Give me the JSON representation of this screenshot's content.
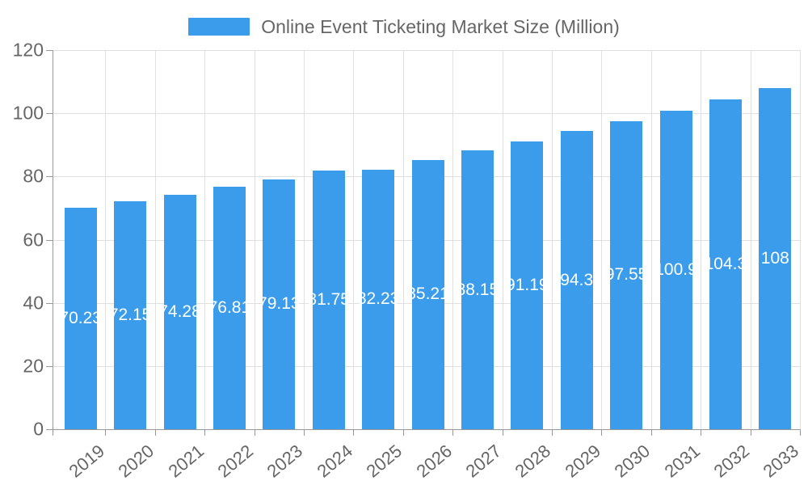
{
  "legend": {
    "label": "Online Event Ticketing Market Size (Million)"
  },
  "chart_data": {
    "type": "bar",
    "title": "Online Event Ticketing Market Size (Million)",
    "categories": [
      "2019",
      "2020",
      "2021",
      "2022",
      "2023",
      "2024",
      "2025",
      "2026",
      "2027",
      "2028",
      "2029",
      "2030",
      "2031",
      "2032",
      "2033"
    ],
    "values": [
      70.23,
      72.15,
      74.28,
      76.81,
      79.13,
      81.75,
      82.23,
      85.21,
      88.15,
      91.19,
      94.3,
      97.55,
      100.9,
      104.3,
      108
    ],
    "value_labels": [
      "70.23",
      "72.15",
      "74.28",
      "76.81",
      "79.13",
      "81.75",
      "82.23",
      "85.21",
      "88.15",
      "91.19",
      "94.3",
      "97.55",
      "100.9",
      "104.3",
      "108"
    ],
    "xlabel": "",
    "ylabel": "",
    "ylim": [
      0,
      120
    ],
    "yticks": [
      0,
      20,
      40,
      60,
      80,
      100,
      120
    ],
    "grid": true,
    "legend_position": "top",
    "bar_label_position": "inside-middle",
    "colors": {
      "bar": "#3B9CEC",
      "axis": "#999999",
      "grid": "#E0E0E0",
      "tick_text": "#666666",
      "bar_label": "#FFFFFF",
      "title": "#666666"
    }
  }
}
